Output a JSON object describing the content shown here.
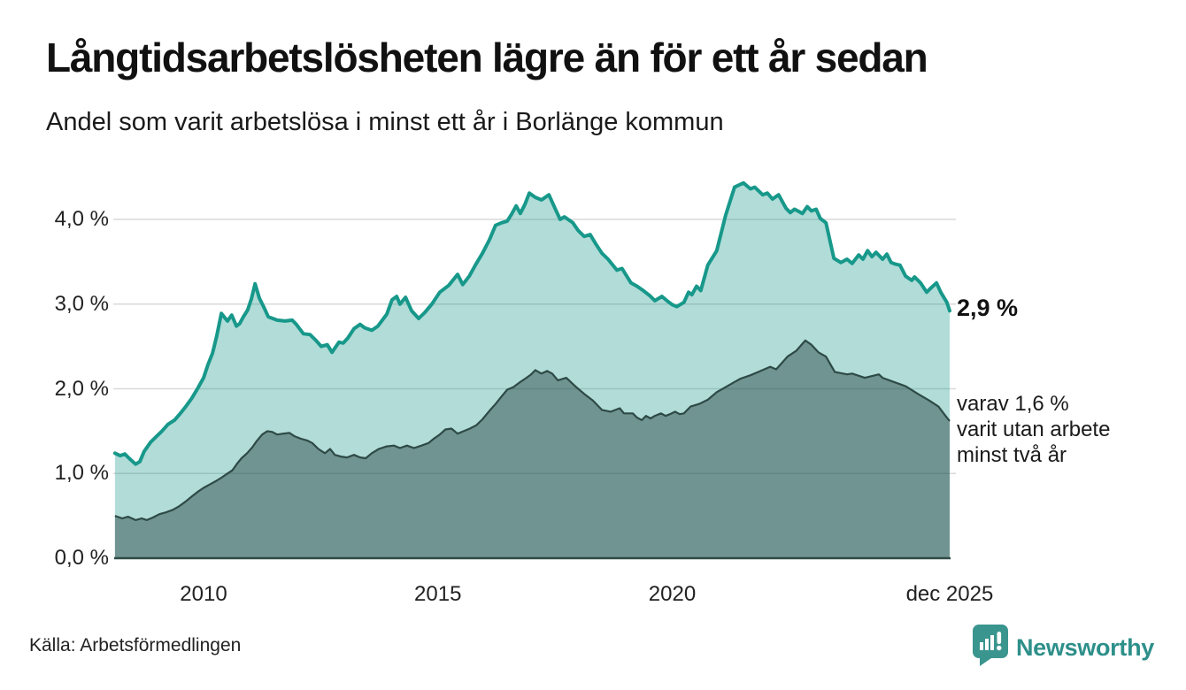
{
  "header": {
    "title": "Långtidsarbetslösheten lägre än för ett år sedan",
    "subtitle": "Andel som varit arbetslösa i minst ett år i Borlänge kommun"
  },
  "annotations": {
    "end_value": "2,9 %",
    "detail_line1": "varav 1,6 %",
    "detail_line2": "varit utan arbete",
    "detail_line3": "minst två år"
  },
  "footer": {
    "source": "Källa: Arbetsförmedlingen",
    "logo_text": "Newsworthy",
    "logo_icon": "newsworthy-speech-bubble-bar-chart-icon"
  },
  "chart_data": {
    "type": "area",
    "title": "Långtidsarbetslösheten lägre än för ett år sedan",
    "subtitle": "Andel som varit arbetslösa i minst ett år i Borlänge kommun",
    "x_range": [
      2008.1,
      2025.92
    ],
    "ylim": [
      0,
      4.5
    ],
    "grid": true,
    "legend_position": "end-of-line-labels",
    "colors": {
      "line1": "#17988a",
      "fill1": "#17988a56",
      "line2": "#2e4a46",
      "fill2": "#1e3a3670",
      "axis": "#2e4a46",
      "grid": "#d9d9d9",
      "text": "#1a1a1a",
      "brand": "#2e8f8a"
    },
    "yticks": [
      {
        "label": "0,0 %",
        "value": 0
      },
      {
        "label": "1,0 %",
        "value": 1
      },
      {
        "label": "2,0 %",
        "value": 2
      },
      {
        "label": "3,0 %",
        "value": 3
      },
      {
        "label": "4,0 %",
        "value": 4
      }
    ],
    "xticks": [
      {
        "label": "2010",
        "year": 2010
      },
      {
        "label": "2015",
        "year": 2015
      },
      {
        "label": "2020",
        "year": 2020
      },
      {
        "label": "dec 2025",
        "year": 2025.92
      }
    ],
    "series": [
      {
        "name": "Andel arbetslösa minst ett år",
        "end_value": 2.9,
        "end_label": "2,9 %",
        "points": [
          [
            2008.11,
            1.24
          ],
          [
            2008.22,
            1.21
          ],
          [
            2008.32,
            1.23
          ],
          [
            2008.41,
            1.18
          ],
          [
            2008.55,
            1.11
          ],
          [
            2008.64,
            1.14
          ],
          [
            2008.73,
            1.26
          ],
          [
            2008.87,
            1.37
          ],
          [
            2009.0,
            1.44
          ],
          [
            2009.11,
            1.5
          ],
          [
            2009.24,
            1.58
          ],
          [
            2009.38,
            1.63
          ],
          [
            2009.49,
            1.7
          ],
          [
            2009.62,
            1.79
          ],
          [
            2009.75,
            1.89
          ],
          [
            2009.87,
            2.0
          ],
          [
            2010.0,
            2.13
          ],
          [
            2010.09,
            2.28
          ],
          [
            2010.19,
            2.42
          ],
          [
            2010.28,
            2.62
          ],
          [
            2010.38,
            2.89
          ],
          [
            2010.51,
            2.8
          ],
          [
            2010.6,
            2.87
          ],
          [
            2010.7,
            2.74
          ],
          [
            2010.77,
            2.77
          ],
          [
            2010.85,
            2.85
          ],
          [
            2010.94,
            2.93
          ],
          [
            2011.02,
            3.06
          ],
          [
            2011.1,
            3.24
          ],
          [
            2011.19,
            3.07
          ],
          [
            2011.28,
            2.97
          ],
          [
            2011.38,
            2.85
          ],
          [
            2011.57,
            2.81
          ],
          [
            2011.74,
            2.8
          ],
          [
            2011.89,
            2.81
          ],
          [
            2011.98,
            2.76
          ],
          [
            2012.13,
            2.65
          ],
          [
            2012.27,
            2.64
          ],
          [
            2012.4,
            2.57
          ],
          [
            2012.51,
            2.5
          ],
          [
            2012.64,
            2.52
          ],
          [
            2012.74,
            2.43
          ],
          [
            2012.89,
            2.55
          ],
          [
            2012.98,
            2.54
          ],
          [
            2013.08,
            2.6
          ],
          [
            2013.21,
            2.71
          ],
          [
            2013.34,
            2.76
          ],
          [
            2013.44,
            2.72
          ],
          [
            2013.59,
            2.69
          ],
          [
            2013.72,
            2.74
          ],
          [
            2013.91,
            2.88
          ],
          [
            2014.02,
            3.05
          ],
          [
            2014.12,
            3.09
          ],
          [
            2014.19,
            3.0
          ],
          [
            2014.31,
            3.08
          ],
          [
            2014.44,
            2.92
          ],
          [
            2014.59,
            2.83
          ],
          [
            2014.72,
            2.9
          ],
          [
            2014.87,
            3.0
          ],
          [
            2015.04,
            3.14
          ],
          [
            2015.23,
            3.22
          ],
          [
            2015.42,
            3.35
          ],
          [
            2015.53,
            3.23
          ],
          [
            2015.67,
            3.33
          ],
          [
            2015.8,
            3.46
          ],
          [
            2015.95,
            3.6
          ],
          [
            2016.1,
            3.76
          ],
          [
            2016.23,
            3.93
          ],
          [
            2016.36,
            3.96
          ],
          [
            2016.48,
            3.98
          ],
          [
            2016.57,
            4.06
          ],
          [
            2016.67,
            4.16
          ],
          [
            2016.76,
            4.07
          ],
          [
            2016.86,
            4.18
          ],
          [
            2016.95,
            4.31
          ],
          [
            2017.08,
            4.26
          ],
          [
            2017.21,
            4.23
          ],
          [
            2017.37,
            4.29
          ],
          [
            2017.5,
            4.13
          ],
          [
            2017.61,
            4.0
          ],
          [
            2017.7,
            4.03
          ],
          [
            2017.88,
            3.96
          ],
          [
            2017.99,
            3.87
          ],
          [
            2018.12,
            3.8
          ],
          [
            2018.25,
            3.82
          ],
          [
            2018.37,
            3.71
          ],
          [
            2018.5,
            3.6
          ],
          [
            2018.63,
            3.53
          ],
          [
            2018.82,
            3.4
          ],
          [
            2018.93,
            3.42
          ],
          [
            2019.12,
            3.25
          ],
          [
            2019.25,
            3.21
          ],
          [
            2019.38,
            3.16
          ],
          [
            2019.52,
            3.1
          ],
          [
            2019.63,
            3.04
          ],
          [
            2019.78,
            3.09
          ],
          [
            2019.91,
            3.03
          ],
          [
            2020.01,
            2.99
          ],
          [
            2020.1,
            2.97
          ],
          [
            2020.25,
            3.02
          ],
          [
            2020.35,
            3.14
          ],
          [
            2020.42,
            3.11
          ],
          [
            2020.52,
            3.21
          ],
          [
            2020.61,
            3.16
          ],
          [
            2020.76,
            3.46
          ],
          [
            2020.95,
            3.63
          ],
          [
            2021.14,
            4.05
          ],
          [
            2021.33,
            4.38
          ],
          [
            2021.52,
            4.43
          ],
          [
            2021.67,
            4.36
          ],
          [
            2021.76,
            4.38
          ],
          [
            2021.93,
            4.29
          ],
          [
            2022.03,
            4.31
          ],
          [
            2022.14,
            4.24
          ],
          [
            2022.27,
            4.29
          ],
          [
            2022.43,
            4.13
          ],
          [
            2022.52,
            4.08
          ],
          [
            2022.61,
            4.12
          ],
          [
            2022.78,
            4.07
          ],
          [
            2022.88,
            4.15
          ],
          [
            2022.97,
            4.1
          ],
          [
            2023.07,
            4.12
          ],
          [
            2023.16,
            4.01
          ],
          [
            2023.28,
            3.96
          ],
          [
            2023.45,
            3.54
          ],
          [
            2023.6,
            3.49
          ],
          [
            2023.73,
            3.53
          ],
          [
            2023.84,
            3.48
          ],
          [
            2023.98,
            3.58
          ],
          [
            2024.07,
            3.53
          ],
          [
            2024.17,
            3.63
          ],
          [
            2024.26,
            3.56
          ],
          [
            2024.35,
            3.61
          ],
          [
            2024.49,
            3.53
          ],
          [
            2024.58,
            3.59
          ],
          [
            2024.67,
            3.49
          ],
          [
            2024.77,
            3.47
          ],
          [
            2024.86,
            3.46
          ],
          [
            2024.98,
            3.33
          ],
          [
            2025.11,
            3.28
          ],
          [
            2025.17,
            3.32
          ],
          [
            2025.3,
            3.25
          ],
          [
            2025.43,
            3.14
          ],
          [
            2025.54,
            3.2
          ],
          [
            2025.64,
            3.25
          ],
          [
            2025.73,
            3.14
          ],
          [
            2025.86,
            3.02
          ],
          [
            2025.92,
            2.92
          ]
        ]
      },
      {
        "name": "Varav utan arbete minst två år",
        "end_value": 1.6,
        "end_label": "varav 1,6 % varit utan arbete minst två år",
        "points": [
          [
            2008.11,
            0.5
          ],
          [
            2008.26,
            0.47
          ],
          [
            2008.39,
            0.49
          ],
          [
            2008.55,
            0.45
          ],
          [
            2008.68,
            0.47
          ],
          [
            2008.79,
            0.45
          ],
          [
            2008.92,
            0.48
          ],
          [
            2009.06,
            0.52
          ],
          [
            2009.19,
            0.54
          ],
          [
            2009.34,
            0.57
          ],
          [
            2009.47,
            0.61
          ],
          [
            2009.62,
            0.67
          ],
          [
            2009.75,
            0.73
          ],
          [
            2009.89,
            0.79
          ],
          [
            2010.0,
            0.83
          ],
          [
            2010.13,
            0.87
          ],
          [
            2010.26,
            0.91
          ],
          [
            2010.38,
            0.95
          ],
          [
            2010.51,
            1.0
          ],
          [
            2010.62,
            1.04
          ],
          [
            2010.72,
            1.12
          ],
          [
            2010.81,
            1.18
          ],
          [
            2010.93,
            1.24
          ],
          [
            2011.04,
            1.31
          ],
          [
            2011.13,
            1.38
          ],
          [
            2011.25,
            1.46
          ],
          [
            2011.36,
            1.5
          ],
          [
            2011.47,
            1.49
          ],
          [
            2011.57,
            1.46
          ],
          [
            2011.7,
            1.47
          ],
          [
            2011.83,
            1.48
          ],
          [
            2011.94,
            1.44
          ],
          [
            2012.08,
            1.41
          ],
          [
            2012.21,
            1.39
          ],
          [
            2012.32,
            1.36
          ],
          [
            2012.45,
            1.29
          ],
          [
            2012.59,
            1.24
          ],
          [
            2012.7,
            1.29
          ],
          [
            2012.8,
            1.22
          ],
          [
            2012.93,
            1.2
          ],
          [
            2013.06,
            1.19
          ],
          [
            2013.21,
            1.22
          ],
          [
            2013.34,
            1.19
          ],
          [
            2013.46,
            1.18
          ],
          [
            2013.59,
            1.24
          ],
          [
            2013.74,
            1.29
          ],
          [
            2013.91,
            1.32
          ],
          [
            2014.06,
            1.33
          ],
          [
            2014.19,
            1.3
          ],
          [
            2014.34,
            1.33
          ],
          [
            2014.49,
            1.3
          ],
          [
            2014.65,
            1.33
          ],
          [
            2014.8,
            1.36
          ],
          [
            2014.91,
            1.41
          ],
          [
            2015.04,
            1.46
          ],
          [
            2015.16,
            1.52
          ],
          [
            2015.29,
            1.53
          ],
          [
            2015.42,
            1.47
          ],
          [
            2015.55,
            1.5
          ],
          [
            2015.68,
            1.53
          ],
          [
            2015.82,
            1.57
          ],
          [
            2015.95,
            1.64
          ],
          [
            2016.1,
            1.74
          ],
          [
            2016.23,
            1.82
          ],
          [
            2016.36,
            1.91
          ],
          [
            2016.48,
            1.99
          ],
          [
            2016.61,
            2.02
          ],
          [
            2016.76,
            2.08
          ],
          [
            2016.89,
            2.13
          ],
          [
            2016.99,
            2.17
          ],
          [
            2017.08,
            2.22
          ],
          [
            2017.21,
            2.18
          ],
          [
            2017.33,
            2.21
          ],
          [
            2017.44,
            2.18
          ],
          [
            2017.56,
            2.1
          ],
          [
            2017.74,
            2.13
          ],
          [
            2017.93,
            2.03
          ],
          [
            2018.12,
            1.94
          ],
          [
            2018.31,
            1.86
          ],
          [
            2018.5,
            1.75
          ],
          [
            2018.69,
            1.73
          ],
          [
            2018.88,
            1.77
          ],
          [
            2018.97,
            1.71
          ],
          [
            2019.16,
            1.71
          ],
          [
            2019.25,
            1.66
          ],
          [
            2019.35,
            1.63
          ],
          [
            2019.44,
            1.68
          ],
          [
            2019.54,
            1.65
          ],
          [
            2019.63,
            1.68
          ],
          [
            2019.76,
            1.71
          ],
          [
            2019.86,
            1.68
          ],
          [
            2019.95,
            1.7
          ],
          [
            2020.06,
            1.73
          ],
          [
            2020.16,
            1.7
          ],
          [
            2020.25,
            1.71
          ],
          [
            2020.39,
            1.79
          ],
          [
            2020.57,
            1.82
          ],
          [
            2020.76,
            1.87
          ],
          [
            2020.95,
            1.96
          ],
          [
            2021.14,
            2.02
          ],
          [
            2021.33,
            2.08
          ],
          [
            2021.46,
            2.12
          ],
          [
            2021.67,
            2.16
          ],
          [
            2021.84,
            2.2
          ],
          [
            2022.09,
            2.26
          ],
          [
            2022.22,
            2.23
          ],
          [
            2022.46,
            2.38
          ],
          [
            2022.65,
            2.45
          ],
          [
            2022.84,
            2.57
          ],
          [
            2022.97,
            2.52
          ],
          [
            2023.12,
            2.43
          ],
          [
            2023.28,
            2.38
          ],
          [
            2023.47,
            2.2
          ],
          [
            2023.73,
            2.17
          ],
          [
            2023.84,
            2.18
          ],
          [
            2024.11,
            2.13
          ],
          [
            2024.41,
            2.17
          ],
          [
            2024.49,
            2.13
          ],
          [
            2024.73,
            2.08
          ],
          [
            2024.98,
            2.03
          ],
          [
            2025.24,
            1.94
          ],
          [
            2025.49,
            1.86
          ],
          [
            2025.68,
            1.79
          ],
          [
            2025.86,
            1.66
          ],
          [
            2025.92,
            1.62
          ]
        ]
      }
    ]
  }
}
